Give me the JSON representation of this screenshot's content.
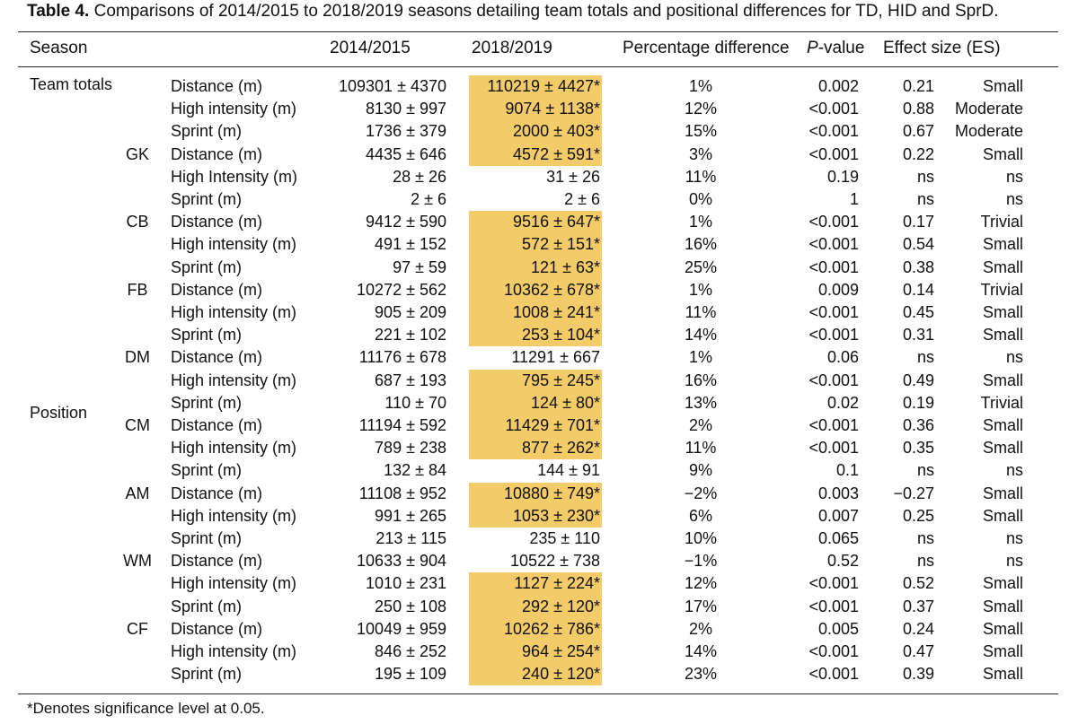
{
  "caption": {
    "label": "Table 4.",
    "text": "Comparisons of 2014/2015 to 2018/2019 seasons detailing team totals and positional differences for TD, HID and SprD."
  },
  "headers": {
    "season": "Season",
    "v1": "2014/2015",
    "v2": "2018/2019",
    "pd": "Percentage difference",
    "p_italic": "P",
    "p_rest": "-value",
    "es": "Effect size (ES)"
  },
  "groups": {
    "team": "Team totals",
    "position": "Position"
  },
  "highlight_color": "#f3cb68",
  "rows": [
    {
      "pos": "",
      "var": "Distance (m)",
      "v1": "109301 ± 4370",
      "v2": "110219 ± 4427*",
      "hl": true,
      "pd": "1%",
      "p": "0.002",
      "es": "0.21",
      "mag": "Small"
    },
    {
      "pos": "",
      "var": "High intensity (m)",
      "v1": "8130 ± 997",
      "v2": "9074 ± 1138*",
      "hl": true,
      "pd": "12%",
      "p": "<0.001",
      "es": "0.88",
      "mag": "Moderate"
    },
    {
      "pos": "",
      "var": "Sprint (m)",
      "v1": "1736 ± 379",
      "v2": "2000 ± 403*",
      "hl": true,
      "pd": "15%",
      "p": "<0.001",
      "es": "0.67",
      "mag": "Moderate"
    },
    {
      "pos": "GK",
      "var": "Distance (m)",
      "v1": "4435 ± 646",
      "v2": "4572 ± 591*",
      "hl": true,
      "pd": "3%",
      "p": "<0.001",
      "es": "0.22",
      "mag": "Small"
    },
    {
      "pos": "",
      "var": "High Intensity (m)",
      "v1": "28 ± 26",
      "v2": "31 ± 26",
      "hl": false,
      "pd": "11%",
      "p": "0.19",
      "es": "ns",
      "mag": "ns"
    },
    {
      "pos": "",
      "var": "Sprint (m)",
      "v1": "2 ± 6",
      "v2": "2 ± 6",
      "hl": false,
      "pd": "0%",
      "p": "1",
      "es": "ns",
      "mag": "ns"
    },
    {
      "pos": "CB",
      "var": "Distance (m)",
      "v1": "9412 ± 590",
      "v2": "9516 ± 647*",
      "hl": true,
      "pd": "1%",
      "p": "<0.001",
      "es": "0.17",
      "mag": "Trivial"
    },
    {
      "pos": "",
      "var": "High intensity (m)",
      "v1": "491 ± 152",
      "v2": "572 ± 151*",
      "hl": true,
      "pd": "16%",
      "p": "<0.001",
      "es": "0.54",
      "mag": "Small"
    },
    {
      "pos": "",
      "var": "Sprint (m)",
      "v1": "97 ± 59",
      "v2": "121 ± 63*",
      "hl": true,
      "pd": "25%",
      "p": "<0.001",
      "es": "0.38",
      "mag": "Small"
    },
    {
      "pos": "FB",
      "var": "Distance (m)",
      "v1": "10272 ± 562",
      "v2": "10362 ± 678*",
      "hl": true,
      "pd": "1%",
      "p": "0.009",
      "es": "0.14",
      "mag": "Trivial"
    },
    {
      "pos": "",
      "var": "High intensity (m)",
      "v1": "905 ± 209",
      "v2": "1008 ± 241*",
      "hl": true,
      "pd": "11%",
      "p": "<0.001",
      "es": "0.45",
      "mag": "Small"
    },
    {
      "pos": "",
      "var": "Sprint (m)",
      "v1": "221 ± 102",
      "v2": "253 ± 104*",
      "hl": true,
      "pd": "14%",
      "p": "<0.001",
      "es": "0.31",
      "mag": "Small"
    },
    {
      "pos": "DM",
      "var": "Distance (m)",
      "v1": "11176 ± 678",
      "v2": "11291 ± 667",
      "hl": false,
      "pd": "1%",
      "p": "0.06",
      "es": "ns",
      "mag": "ns"
    },
    {
      "pos": "",
      "var": "High intensity (m)",
      "v1": "687 ± 193",
      "v2": "795 ± 245*",
      "hl": true,
      "pd": "16%",
      "p": "<0.001",
      "es": "0.49",
      "mag": "Small"
    },
    {
      "pos": "",
      "var": "Sprint (m)",
      "v1": "110 ± 70",
      "v2": "124 ± 80*",
      "hl": true,
      "pd": "13%",
      "p": "0.02",
      "es": "0.19",
      "mag": "Trivial"
    },
    {
      "pos": "CM",
      "var": "Distance (m)",
      "v1": "11194 ± 592",
      "v2": "11429 ± 701*",
      "hl": true,
      "pd": "2%",
      "p": "<0.001",
      "es": "0.36",
      "mag": "Small"
    },
    {
      "pos": "",
      "var": "High intensity (m)",
      "v1": "789 ± 238",
      "v2": "877 ± 262*",
      "hl": true,
      "pd": "11%",
      "p": "<0.001",
      "es": "0.35",
      "mag": "Small"
    },
    {
      "pos": "",
      "var": "Sprint (m)",
      "v1": "132 ± 84",
      "v2": "144 ± 91",
      "hl": false,
      "pd": "9%",
      "p": "0.1",
      "es": "ns",
      "mag": "ns"
    },
    {
      "pos": "AM",
      "var": "Distance (m)",
      "v1": "11108 ± 952",
      "v2": "10880 ± 749*",
      "hl": true,
      "pd": "−2%",
      "p": "0.003",
      "es": "−0.27",
      "mag": "Small"
    },
    {
      "pos": "",
      "var": "High intensity (m)",
      "v1": "991 ± 265",
      "v2": "1053 ± 230*",
      "hl": true,
      "pd": "6%",
      "p": "0.007",
      "es": "0.25",
      "mag": "Small"
    },
    {
      "pos": "",
      "var": "Sprint (m)",
      "v1": "213 ± 115",
      "v2": "235 ± 110",
      "hl": false,
      "pd": "10%",
      "p": "0.065",
      "es": "ns",
      "mag": "ns"
    },
    {
      "pos": "WM",
      "var": "Distance (m)",
      "v1": "10633 ± 904",
      "v2": "10522 ± 738",
      "hl": false,
      "pd": "−1%",
      "p": "0.52",
      "es": "ns",
      "mag": "ns"
    },
    {
      "pos": "",
      "var": "High intensity (m)",
      "v1": "1010 ± 231",
      "v2": "1127 ± 224*",
      "hl": true,
      "pd": "12%",
      "p": "<0.001",
      "es": "0.52",
      "mag": "Small"
    },
    {
      "pos": "",
      "var": "Sprint (m)",
      "v1": "250 ± 108",
      "v2": "292 ± 120*",
      "hl": true,
      "pd": "17%",
      "p": "<0.001",
      "es": "0.37",
      "mag": "Small"
    },
    {
      "pos": "CF",
      "var": "Distance (m)",
      "v1": "10049 ± 959",
      "v2": "10262 ± 786*",
      "hl": true,
      "pd": "2%",
      "p": "0.005",
      "es": "0.24",
      "mag": "Small"
    },
    {
      "pos": "",
      "var": "High intensity (m)",
      "v1": "846 ± 252",
      "v2": "964 ± 254*",
      "hl": true,
      "pd": "14%",
      "p": "<0.001",
      "es": "0.47",
      "mag": "Small"
    },
    {
      "pos": "",
      "var": "Sprint (m)",
      "v1": "195 ± 109",
      "v2": "240 ± 120*",
      "hl": true,
      "pd": "23%",
      "p": "<0.001",
      "es": "0.39",
      "mag": "Small"
    }
  ],
  "footnote": "*Denotes significance level at 0.05."
}
